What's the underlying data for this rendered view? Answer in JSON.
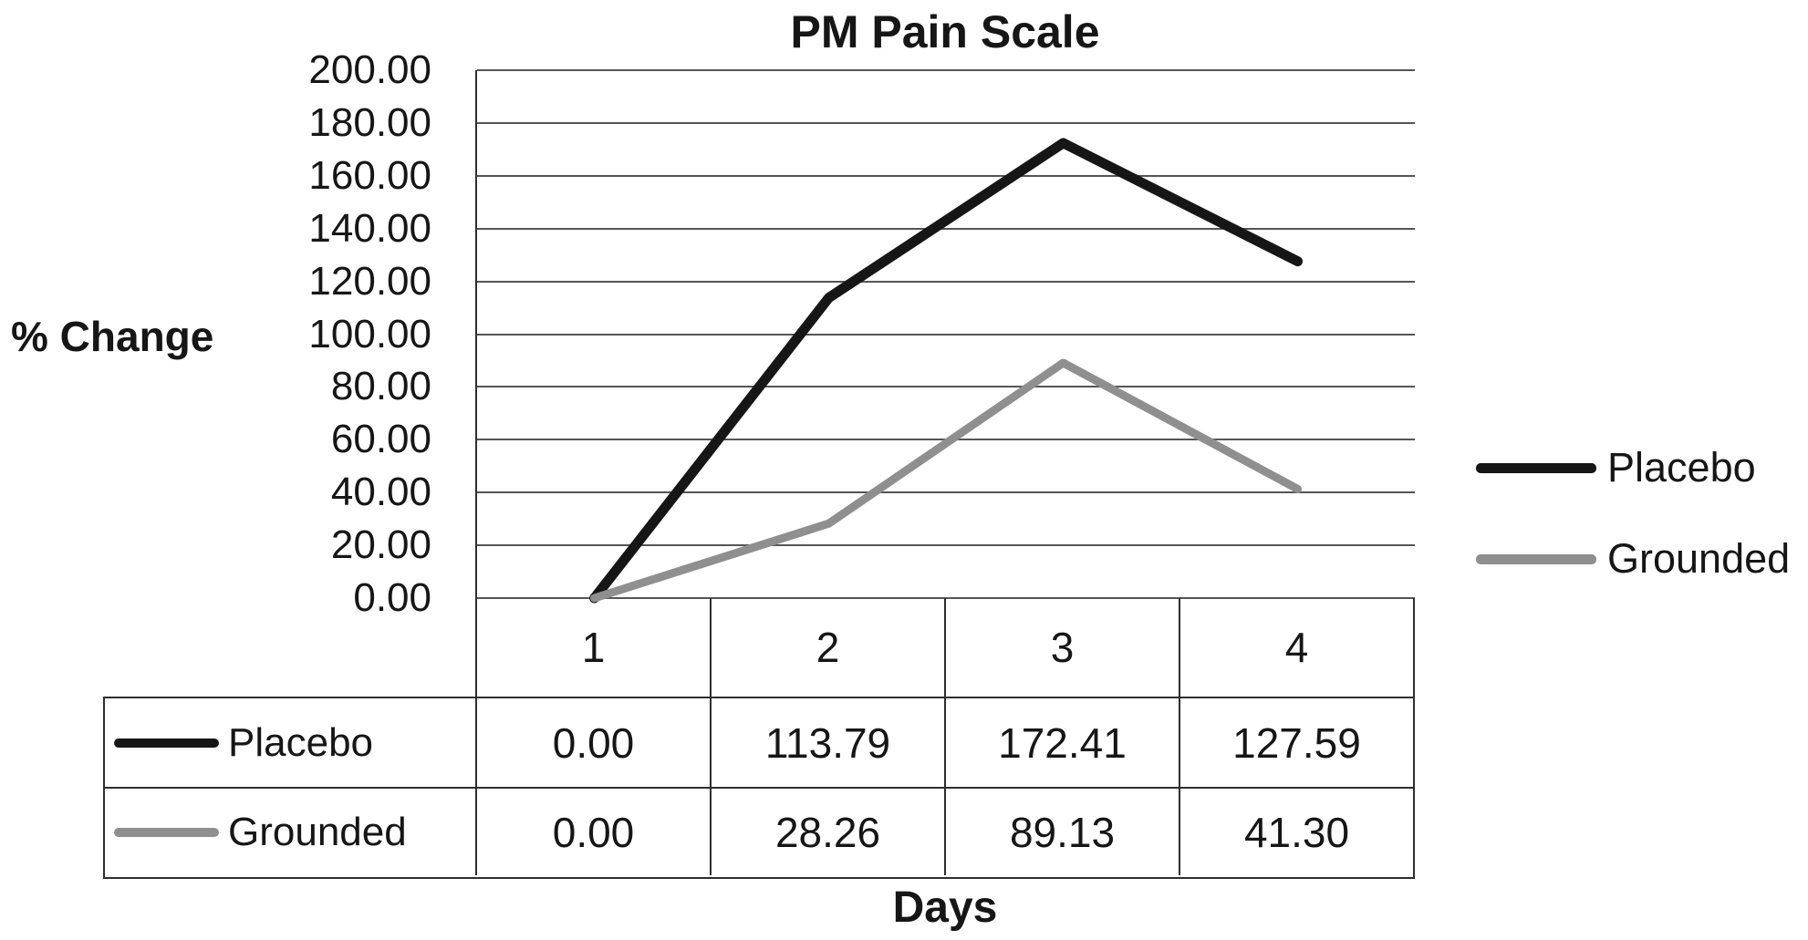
{
  "chart_data": {
    "type": "line",
    "title": "PM Pain Scale",
    "xlabel": "Days",
    "ylabel": "% Change",
    "categories": [
      "1",
      "2",
      "3",
      "4"
    ],
    "series": [
      {
        "name": "Placebo",
        "color": "#161616",
        "values": [
          0.0,
          113.79,
          172.41,
          127.59
        ]
      },
      {
        "name": "Grounded",
        "color": "#8f8f8f",
        "values": [
          0.0,
          28.26,
          89.13,
          41.3
        ]
      }
    ],
    "ylim": [
      0,
      200
    ],
    "ytick_step": 20,
    "value_decimals": 2,
    "grid": true,
    "legend_position": "right",
    "data_table_shown": true
  }
}
